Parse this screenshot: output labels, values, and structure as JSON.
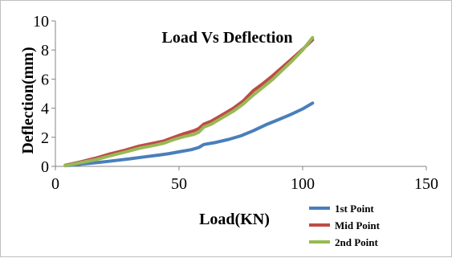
{
  "chart_data": {
    "type": "line",
    "title": "Load Vs Deflection",
    "xlabel": "Load(KN)",
    "ylabel": "Deflection(mm)",
    "xlim": [
      0,
      150
    ],
    "ylim": [
      0,
      10
    ],
    "xticks": [
      0,
      50,
      100,
      150
    ],
    "yticks": [
      0,
      2,
      4,
      6,
      8,
      10
    ],
    "x_tick_labels": [
      "0",
      "50",
      "100",
      "150"
    ],
    "y_tick_labels": [
      "0",
      "2",
      "4",
      "6",
      "8",
      "10"
    ],
    "grid": false,
    "legend_position": "bottom-right",
    "series": [
      {
        "name": "1st Point",
        "color": "#4a7ebb",
        "points": [
          [
            4,
            0.05
          ],
          [
            8,
            0.1
          ],
          [
            12,
            0.18
          ],
          [
            18,
            0.28
          ],
          [
            24,
            0.4
          ],
          [
            30,
            0.52
          ],
          [
            36,
            0.65
          ],
          [
            42,
            0.78
          ],
          [
            46,
            0.88
          ],
          [
            50,
            1.0
          ],
          [
            55,
            1.15
          ],
          [
            58,
            1.3
          ],
          [
            60,
            1.5
          ],
          [
            65,
            1.65
          ],
          [
            70,
            1.85
          ],
          [
            75,
            2.1
          ],
          [
            80,
            2.45
          ],
          [
            85,
            2.85
          ],
          [
            90,
            3.2
          ],
          [
            95,
            3.55
          ],
          [
            100,
            3.95
          ],
          [
            104,
            4.35
          ]
        ]
      },
      {
        "name": "Mid Point",
        "color": "#be4b48",
        "points": [
          [
            4,
            0.08
          ],
          [
            10,
            0.3
          ],
          [
            16,
            0.55
          ],
          [
            22,
            0.85
          ],
          [
            28,
            1.1
          ],
          [
            34,
            1.4
          ],
          [
            40,
            1.6
          ],
          [
            44,
            1.75
          ],
          [
            48,
            2.0
          ],
          [
            52,
            2.25
          ],
          [
            56,
            2.45
          ],
          [
            58,
            2.6
          ],
          [
            60,
            2.9
          ],
          [
            63,
            3.1
          ],
          [
            67,
            3.5
          ],
          [
            72,
            4.0
          ],
          [
            76,
            4.5
          ],
          [
            80,
            5.2
          ],
          [
            84,
            5.7
          ],
          [
            88,
            6.25
          ],
          [
            92,
            6.85
          ],
          [
            96,
            7.45
          ],
          [
            100,
            8.05
          ],
          [
            104,
            8.7
          ]
        ]
      },
      {
        "name": "2nd Point",
        "color": "#98b954",
        "points": [
          [
            4,
            0.05
          ],
          [
            10,
            0.25
          ],
          [
            16,
            0.45
          ],
          [
            22,
            0.72
          ],
          [
            28,
            0.98
          ],
          [
            34,
            1.25
          ],
          [
            40,
            1.45
          ],
          [
            44,
            1.6
          ],
          [
            48,
            1.85
          ],
          [
            52,
            2.05
          ],
          [
            56,
            2.2
          ],
          [
            58,
            2.35
          ],
          [
            60,
            2.7
          ],
          [
            63,
            2.9
          ],
          [
            67,
            3.3
          ],
          [
            72,
            3.8
          ],
          [
            76,
            4.3
          ],
          [
            80,
            4.9
          ],
          [
            84,
            5.45
          ],
          [
            88,
            6.0
          ],
          [
            92,
            6.65
          ],
          [
            96,
            7.3
          ],
          [
            100,
            8.0
          ],
          [
            104,
            8.85
          ]
        ]
      }
    ]
  }
}
